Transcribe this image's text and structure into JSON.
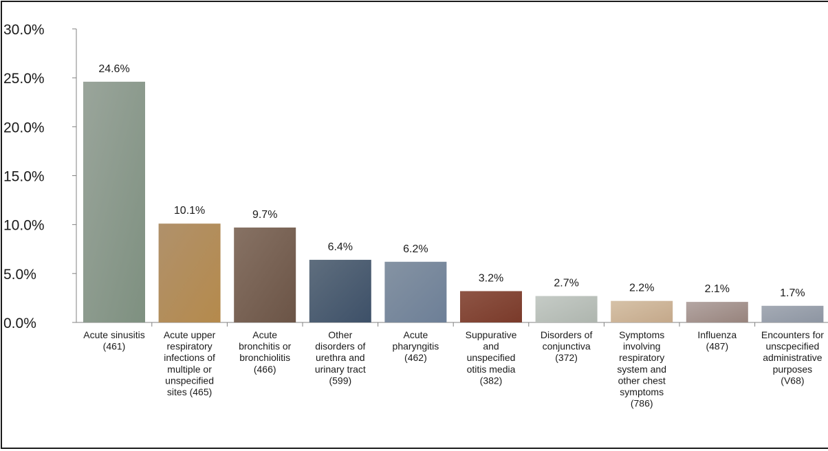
{
  "chart_data": {
    "type": "bar",
    "title": "",
    "xlabel": "",
    "ylabel": "",
    "ylim": [
      0,
      30
    ],
    "yticks": [
      "0.0%",
      "5.0%",
      "10.0%",
      "15.0%",
      "20.0%",
      "25.0%",
      "30.0%"
    ],
    "grid": false,
    "legend": "none",
    "categories": [
      [
        "Acute sinusitis",
        "(461)"
      ],
      [
        "Acute upper",
        "respiratory",
        "infections of",
        "multiple or",
        "unspecified",
        "sites (465)"
      ],
      [
        "Acute",
        "bronchitis or",
        "bronchiolitis",
        "(466)"
      ],
      [
        "Other",
        "disorders of",
        "urethra and",
        "urinary tract",
        "(599)"
      ],
      [
        "Acute",
        "pharyngitis",
        "(462)"
      ],
      [
        "Suppurative",
        "and",
        "unspecified",
        "otitis media",
        "(382)"
      ],
      [
        "Disorders of",
        "conjunctiva",
        "(372)"
      ],
      [
        "Symptoms",
        "involving",
        "respiratory",
        "system and",
        "other chest",
        "symptoms",
        "(786)"
      ],
      [
        "Influenza",
        "(487)"
      ],
      [
        "Encounters for",
        "unscpecified",
        "administrative",
        "purposes",
        "(V68)"
      ]
    ],
    "values": [
      24.6,
      10.1,
      9.7,
      6.4,
      6.2,
      3.2,
      2.7,
      2.2,
      2.1,
      1.7
    ],
    "data_labels": [
      "24.6%",
      "10.1%",
      "9.7%",
      "6.4%",
      "6.2%",
      "3.2%",
      "2.7%",
      "2.2%",
      "2.1%",
      "1.7%"
    ],
    "colors": [
      [
        "#9aa59b",
        "#7e9080"
      ],
      [
        "#b0916b",
        "#b58a4c"
      ],
      [
        "#877264",
        "#6b5446"
      ],
      [
        "#5f6e7e",
        "#3d5068"
      ],
      [
        "#8593a3",
        "#6d7f97"
      ],
      [
        "#8e5545",
        "#7a3a2a"
      ],
      [
        "#c5cbc6",
        "#aeb5ae"
      ],
      [
        "#d6c2a8",
        "#c4a88a"
      ],
      [
        "#b4a6a3",
        "#97837c"
      ],
      [
        "#a5abb5",
        "#8d95a2"
      ]
    ]
  }
}
